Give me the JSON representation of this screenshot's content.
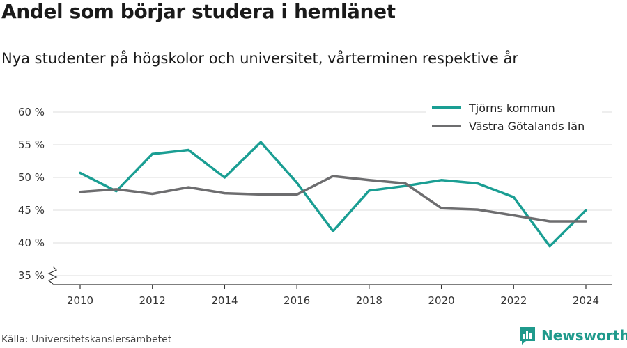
{
  "header": {
    "title": "Andel som börjar studera i hemlänet",
    "subtitle": "Nya studenter på högskolor och universitet, vårterminen respektive år"
  },
  "footer": {
    "source": "Källa: Universitetskanslersämbetet",
    "brand": "Newsworthy"
  },
  "icons": {
    "brand_logo": "bar-chart-logo-icon"
  },
  "colors": {
    "series1": "#1a9e93",
    "series2": "#6d6d6f",
    "grid": "#dddddd",
    "brand": "#1f9a8c"
  },
  "chart_data": {
    "type": "line",
    "title": "Andel som börjar studera i hemlänet",
    "subtitle": "Nya studenter på högskolor och universitet, vårterminen respektive år",
    "xlabel": "",
    "ylabel": "",
    "x": [
      2010,
      2011,
      2012,
      2013,
      2014,
      2015,
      2016,
      2017,
      2018,
      2019,
      2020,
      2021,
      2022,
      2023,
      2024
    ],
    "xlim": [
      2010,
      2024
    ],
    "xticks": [
      2010,
      2012,
      2014,
      2016,
      2018,
      2020,
      2022,
      2024
    ],
    "ylim": [
      35,
      60
    ],
    "yticks": [
      35,
      40,
      45,
      50,
      55,
      60
    ],
    "ytick_suffix": " %",
    "y_axis_break": true,
    "grid": true,
    "legend_position": "top-right",
    "series": [
      {
        "name": "Tjörns kommun",
        "color": "#1a9e93",
        "values": [
          50.7,
          47.9,
          53.6,
          54.2,
          50.0,
          55.4,
          49.2,
          41.8,
          48.0,
          48.7,
          49.6,
          49.1,
          47.0,
          39.5,
          45.0
        ]
      },
      {
        "name": "Västra Götalands län",
        "color": "#6d6d6f",
        "values": [
          47.8,
          48.2,
          47.5,
          48.5,
          47.6,
          47.4,
          47.4,
          50.2,
          49.6,
          49.1,
          45.3,
          45.1,
          44.2,
          43.3,
          43.3
        ]
      }
    ]
  }
}
